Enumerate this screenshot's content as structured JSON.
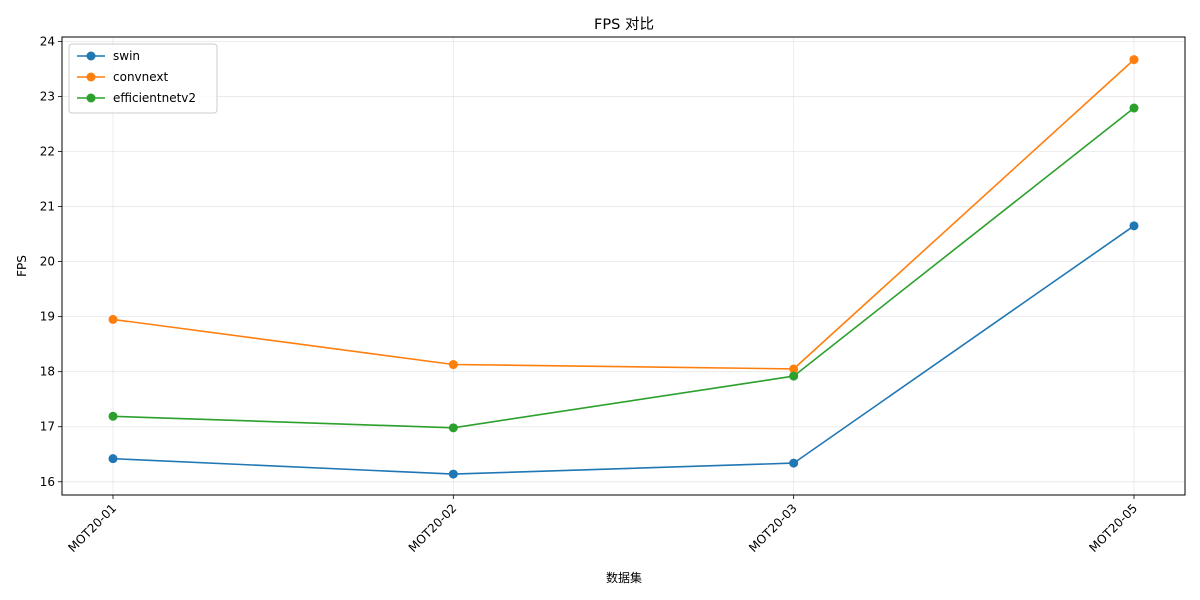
{
  "chart_data": {
    "type": "line",
    "title": "FPS 对比",
    "xlabel": "数据集",
    "ylabel": "FPS",
    "categories": [
      "MOT20-01",
      "MOT20-02",
      "MOT20-03",
      "MOT20-05"
    ],
    "ylim": [
      15.76,
      24.08
    ],
    "yticks": [
      16,
      17,
      18,
      19,
      20,
      21,
      22,
      23,
      24
    ],
    "grid": true,
    "legend_position": "top-left",
    "series": [
      {
        "name": "swin",
        "color": "#1f77b4",
        "values": [
          16.42,
          16.14,
          16.34,
          20.65
        ]
      },
      {
        "name": "convnext",
        "color": "#ff7f0e",
        "values": [
          18.95,
          18.13,
          18.05,
          23.67
        ]
      },
      {
        "name": "efficientnetv2",
        "color": "#2ca02c",
        "values": [
          17.19,
          16.98,
          17.92,
          22.79
        ]
      }
    ]
  }
}
